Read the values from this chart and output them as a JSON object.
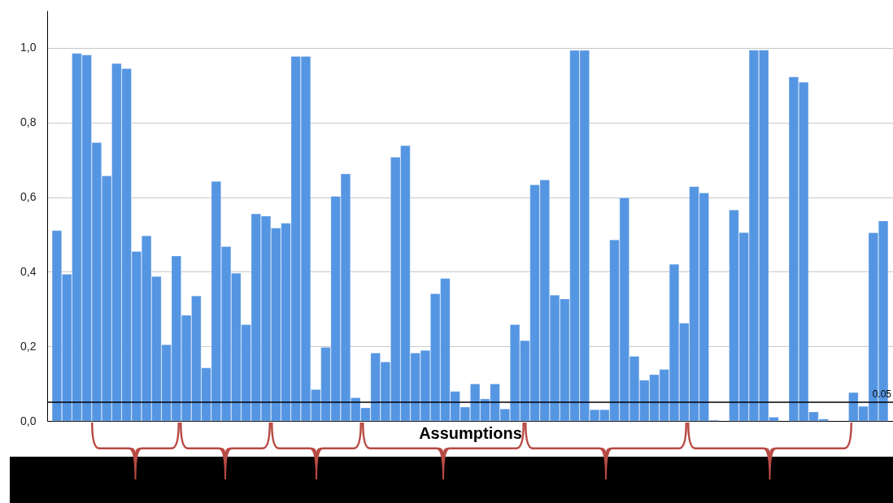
{
  "chart_data": {
    "type": "bar",
    "xlabel": "Assumptions",
    "categories": [
      null,
      null,
      null,
      null,
      null,
      null,
      null,
      null,
      null,
      null,
      null,
      null,
      null,
      null,
      null,
      null,
      null,
      null,
      null,
      null,
      null,
      null,
      null,
      null,
      null,
      null,
      null,
      null,
      null,
      null,
      null,
      null,
      null,
      null,
      null,
      null,
      null,
      null,
      null,
      null,
      null,
      null,
      null,
      null,
      null,
      null,
      null,
      null,
      null,
      null,
      null,
      null,
      null,
      null,
      null,
      null,
      null,
      null,
      null,
      null,
      null,
      null,
      null,
      null,
      null,
      null,
      null,
      null,
      null,
      null,
      null,
      null,
      null,
      null,
      null,
      null,
      null,
      null,
      null,
      null,
      null,
      null,
      null,
      null
    ],
    "values": [
      0.51,
      0.393,
      0.985,
      0.981,
      0.746,
      0.657,
      0.958,
      0.944,
      0.454,
      0.496,
      0.387,
      0.204,
      0.442,
      0.283,
      0.335,
      0.142,
      0.642,
      0.467,
      0.396,
      0.258,
      0.555,
      0.549,
      0.517,
      0.53,
      0.977,
      0.977,
      0.084,
      0.197,
      0.602,
      0.662,
      0.062,
      0.035,
      0.182,
      0.158,
      0.707,
      0.738,
      0.182,
      0.189,
      0.341,
      0.382,
      0.079,
      0.037,
      0.099,
      0.059,
      0.099,
      0.032,
      0.258,
      0.215,
      0.633,
      0.646,
      0.337,
      0.327,
      0.993,
      0.993,
      0.03,
      0.03,
      0.485,
      0.598,
      0.173,
      0.109,
      0.124,
      0.138,
      0.42,
      0.262,
      0.628,
      0.611,
      0.002,
      null,
      0.565,
      0.505,
      0.994,
      0.994,
      0.01,
      null,
      0.922,
      0.908,
      0.024,
      0.005,
      null,
      null,
      0.076,
      0.039,
      0.504,
      0.536
    ],
    "color": "#5596e3",
    "ylim": [
      0,
      1.1
    ],
    "yticks": [
      {
        "value": 0,
        "label": "0,0"
      },
      {
        "value": 0.2,
        "label": "0,2"
      },
      {
        "value": 0.4,
        "label": "0,4"
      },
      {
        "value": 0.6,
        "label": "0,6"
      },
      {
        "value": 0.8,
        "label": "0,8"
      },
      {
        "value": 1,
        "label": "1,0"
      }
    ],
    "grid": "y",
    "tick_labels": "y",
    "ref_lines": [
      {
        "axis": "y",
        "value": 0.05,
        "label": "0.05",
        "color": "#000000"
      }
    ]
  }
}
